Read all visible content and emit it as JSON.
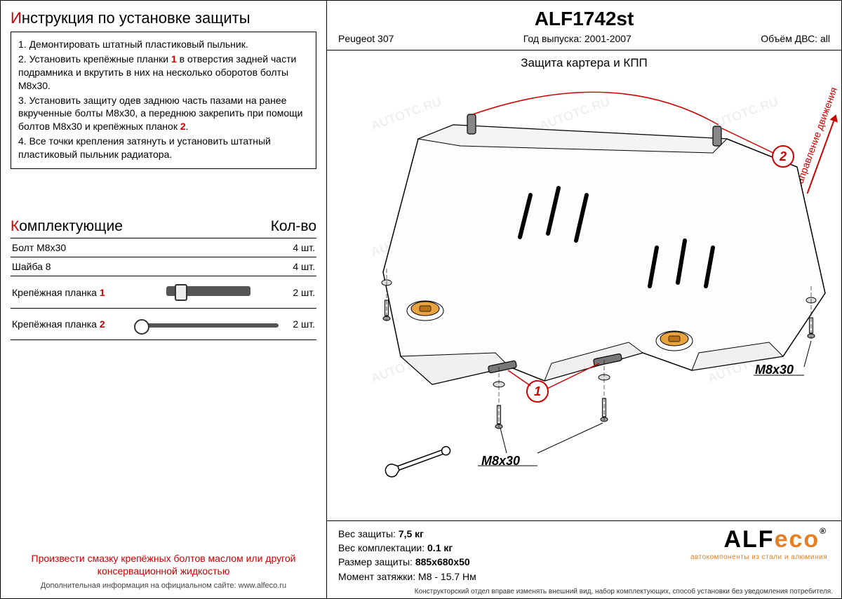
{
  "left": {
    "title_red": "И",
    "title_rest": "нструкция по установке защиты",
    "steps": [
      "1.  Демонтировать штатный пластиковый пыльник.",
      "2.  Установить крепёжные планки <r>1</r> в отверстия задней части подрамника и вкрутить в них на несколько оборотов болты M8x30.",
      "3.  Установить защиту одев заднюю часть пазами на ранее вкрученные болты M8x30, а переднюю закрепить при помощи болтов M8x30 и крепёжных планок <r>2</r>.",
      "4.  Все точки крепления затянуть и установить штатный пластиковый пыльник радиатора."
    ],
    "comp_title_red": "К",
    "comp_title_rest": "омплектующие",
    "comp_qty_header": "Кол-во",
    "components": [
      {
        "name": "Болт M8x30",
        "qty": "4 шт.",
        "icon": ""
      },
      {
        "name": "Шайба 8",
        "qty": "4 шт.",
        "icon": ""
      },
      {
        "name": "Крепёжная планка <r>1</r>",
        "qty": "2 шт.",
        "icon": "b1"
      },
      {
        "name": "Крепёжная планка <r>2</r>",
        "qty": "2 шт.",
        "icon": "b2"
      }
    ],
    "warning": "Произвести смазку крепёжных болтов маслом или другой консервационной жидкостью",
    "website_note": "Дополнительная информация на официальном сайте:  www.alfeco.ru"
  },
  "right": {
    "part_no": "ALF1742st",
    "vehicle": "Peugeot 307",
    "year_label": "Год выпуска:",
    "year_value": "2001-2007",
    "engine_label": "Объём ДВС:",
    "engine_value": "all",
    "draw_title": "Защита картера и КПП",
    "direction_label": "Направление движения",
    "callouts": {
      "m8x30_a": "M8x30",
      "m8x30_b": "M8x30"
    },
    "specs": {
      "weight_label": "Вес защиты:",
      "weight_value": "7,5 кг",
      "kit_weight_label": "Вес комплектации:",
      "kit_weight_value": "0.1 кг",
      "size_label": "Размер защиты:",
      "size_value": "885x680x50",
      "torque_label": "Момент затяжки:",
      "torque_value": "M8 - 15.7 Нм"
    },
    "logo": {
      "a": "ALF",
      "eco": "eco",
      "sub": "автокомпоненты из стали и алюминия"
    },
    "footer": "Конструкторский отдел вправе изменять внешний вид, набор комплектующих, способ установки без уведомления потребителя."
  },
  "colors": {
    "red": "#c00",
    "orange": "#e67e22",
    "plate_fill": "#fdfdfd",
    "plate_stroke": "#000"
  },
  "watermark_text": "AUTOTC.RU"
}
